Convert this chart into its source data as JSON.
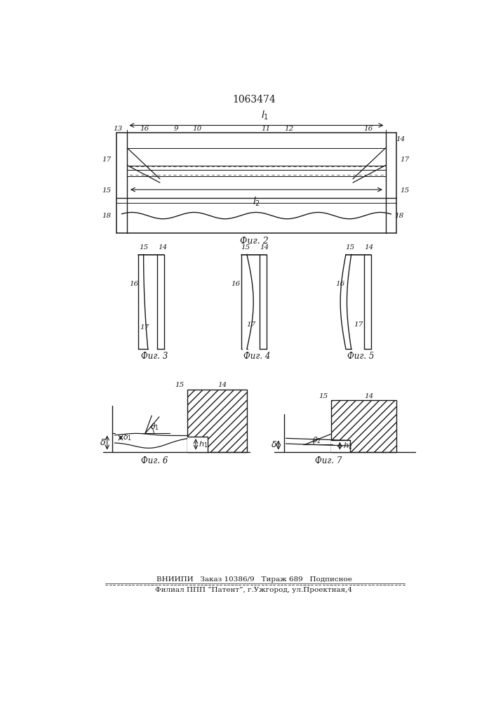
{
  "title": "1063474",
  "fig2_label": "Фиг. 2",
  "fig3_label": "Фиг. 3",
  "fig4_label": "Фиг. 4",
  "fig5_label": "Фиг. 5",
  "fig6_label": "Фиг. 6",
  "fig7_label": "Фиг. 7",
  "footer_line1": "ВНИИПИ   Заказ 10386/9   Тираж 689   Подписное",
  "footer_line2": "Филиал ППП “Патент”, г.Ужгород, ул.Проектная,4",
  "line_color": "#1a1a1a"
}
